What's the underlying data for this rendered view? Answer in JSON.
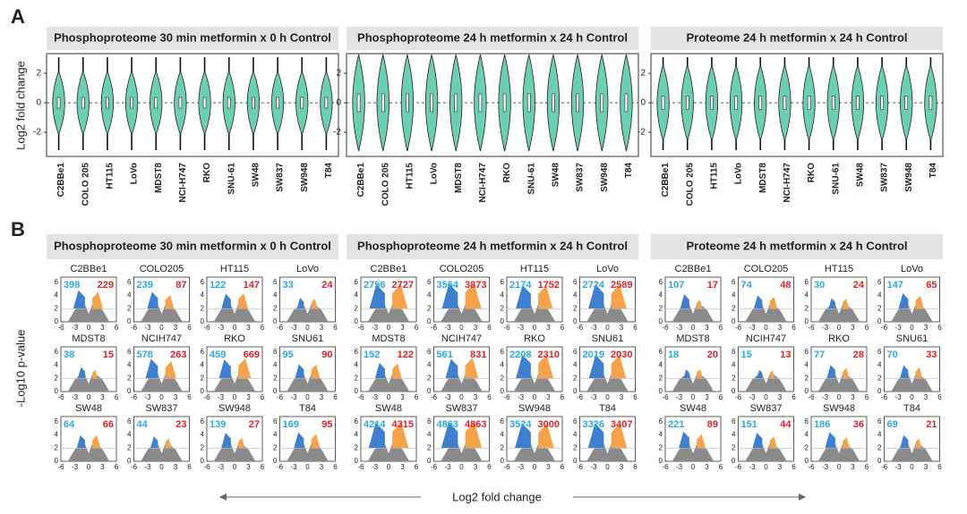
{
  "panel_a": {
    "label": "A",
    "y_label": "Log2 fold change",
    "yticks": [
      "2",
      "0",
      "-2"
    ],
    "titles": [
      "Phosphoproteome 30 min metformin x 0 h Control",
      "Phosphoproteome 24 h metformin x 24 h Control",
      "Proteome 24 h metformin x 24 h Control"
    ],
    "categories": [
      "C2BBe1",
      "COLO 205",
      "HT115",
      "LoVo",
      "MDST8",
      "NCI-H747",
      "RKO",
      "SNU-61",
      "SW48",
      "SW837",
      "SW948",
      "T84"
    ]
  },
  "panel_b": {
    "label": "B",
    "y_label": "-Log10 p-value",
    "x_label": "Log2 fold change",
    "xticks": [
      "-6",
      "-3",
      "0",
      "3",
      "6"
    ],
    "yticks": [
      "6",
      "4",
      "2",
      "0"
    ],
    "groups": [
      {
        "title": "Phosphoproteome 30 min metformin x 0 h Control",
        "cells": [
          {
            "name": "C2BBe1",
            "down": 398,
            "up": 229
          },
          {
            "name": "COLO205",
            "down": 239,
            "up": 87
          },
          {
            "name": "HT115",
            "down": 122,
            "up": 147
          },
          {
            "name": "LoVo",
            "down": 33,
            "up": 24
          },
          {
            "name": "MDST8",
            "down": 38,
            "up": 15
          },
          {
            "name": "NCIH747",
            "down": 578,
            "up": 263
          },
          {
            "name": "RKO",
            "down": 459,
            "up": 669
          },
          {
            "name": "SNU61",
            "down": 95,
            "up": 90
          },
          {
            "name": "SW48",
            "down": 64,
            "up": 66
          },
          {
            "name": "SW837",
            "down": 44,
            "up": 23
          },
          {
            "name": "SW948",
            "down": 139,
            "up": 27
          },
          {
            "name": "T84",
            "down": 169,
            "up": 95
          }
        ]
      },
      {
        "title": "Phosphoproteome 24 h metformin x 24 h Control",
        "cells": [
          {
            "name": "C2BBe1",
            "down": 2756,
            "up": 2727
          },
          {
            "name": "COLO205",
            "down": 3564,
            "up": 3873
          },
          {
            "name": "HT115",
            "down": 2174,
            "up": 1752
          },
          {
            "name": "LoVo",
            "down": 2724,
            "up": 2589
          },
          {
            "name": "MDST8",
            "down": 152,
            "up": 122
          },
          {
            "name": "NCIH747",
            "down": 561,
            "up": 831
          },
          {
            "name": "RKO",
            "down": 2208,
            "up": 2310
          },
          {
            "name": "SNU61",
            "down": 2019,
            "up": 2030
          },
          {
            "name": "SW48",
            "down": 4214,
            "up": 4315
          },
          {
            "name": "SW837",
            "down": 4863,
            "up": 4863
          },
          {
            "name": "SW948",
            "down": 3524,
            "up": 3000
          },
          {
            "name": "T84",
            "down": 3326,
            "up": 3407
          }
        ]
      },
      {
        "title": "Proteome 24 h metformin x 24 h Control",
        "cells": [
          {
            "name": "C2BBe1",
            "down": 107,
            "up": 17
          },
          {
            "name": "COLO205",
            "down": 74,
            "up": 48
          },
          {
            "name": "HT115",
            "down": 30,
            "up": 24
          },
          {
            "name": "LoVo",
            "down": 147,
            "up": 65
          },
          {
            "name": "MDST8",
            "down": 18,
            "up": 20
          },
          {
            "name": "NCIH747",
            "down": 15,
            "up": 13
          },
          {
            "name": "RKO",
            "down": 77,
            "up": 28
          },
          {
            "name": "SNU61",
            "down": 70,
            "up": 33
          },
          {
            "name": "SW48",
            "down": 221,
            "up": 89
          },
          {
            "name": "SW837",
            "down": 151,
            "up": 44
          },
          {
            "name": "SW948",
            "down": 186,
            "up": 36
          },
          {
            "name": "T84",
            "down": 69,
            "up": 21
          }
        ]
      }
    ]
  }
}
